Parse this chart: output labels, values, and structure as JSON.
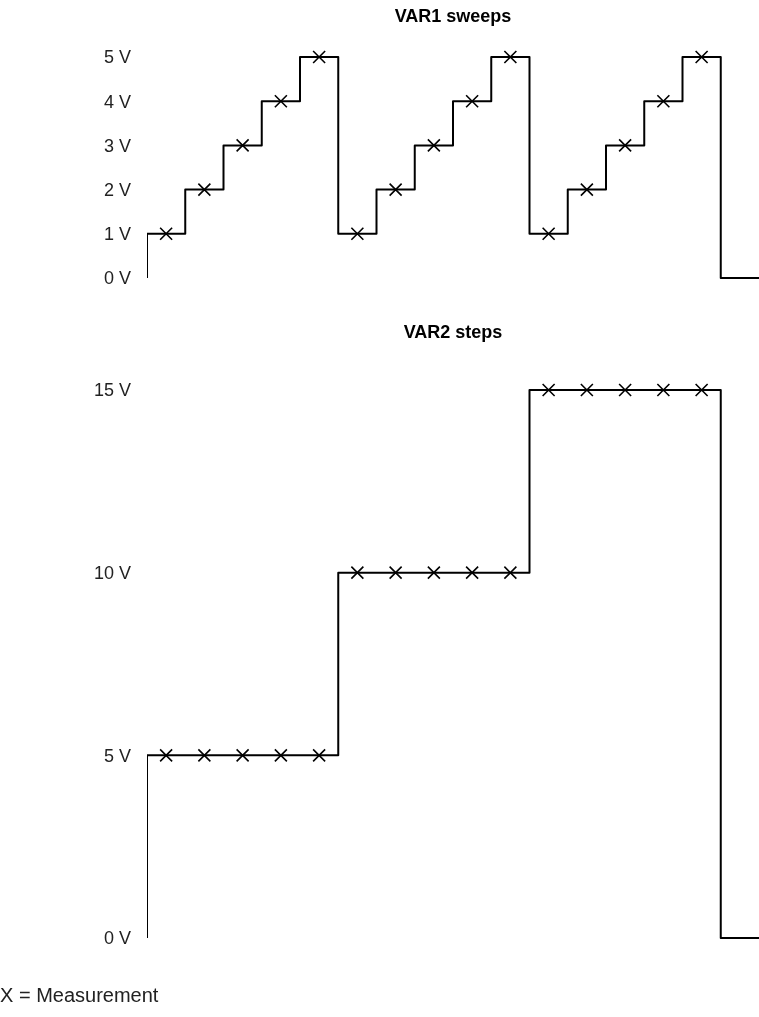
{
  "chart_data": [
    {
      "type": "step",
      "title": "VAR1 sweeps",
      "categories": [
        null,
        null,
        null,
        null,
        null,
        null,
        null,
        null,
        null,
        null,
        null,
        null,
        null,
        null,
        null,
        null,
        null,
        null,
        null,
        null,
        null,
        null,
        null,
        null,
        null,
        null,
        null,
        null,
        null,
        null,
        null,
        null,
        null
      ],
      "ylim": [
        0,
        5
      ],
      "yticks": [
        {
          "value": 0,
          "label": "0 V"
        },
        {
          "value": 1,
          "label": "1 V"
        },
        {
          "value": 2,
          "label": "2 V"
        },
        {
          "value": 3,
          "label": "3 V"
        },
        {
          "value": 4,
          "label": "4 V"
        },
        {
          "value": 5,
          "label": "5 V"
        }
      ],
      "series": [
        {
          "color": "#000000",
          "marker": "none",
          "values": [
            0,
            1,
            1,
            2,
            2,
            3,
            3,
            4,
            4,
            5,
            5,
            1,
            1,
            2,
            2,
            3,
            3,
            4,
            4,
            5,
            5,
            1,
            1,
            2,
            2,
            3,
            3,
            4,
            4,
            5,
            5,
            0,
            0
          ]
        },
        {
          "type": "scatter",
          "color": "#000000",
          "marker": "cross",
          "values": [
            null,
            1,
            null,
            2,
            null,
            3,
            null,
            4,
            null,
            5,
            null,
            1,
            null,
            2,
            null,
            3,
            null,
            4,
            null,
            5,
            null,
            1,
            null,
            2,
            null,
            3,
            null,
            4,
            null,
            5,
            null,
            null,
            null
          ]
        }
      ]
    },
    {
      "type": "step",
      "title": "VAR2 steps",
      "categories": [
        null,
        null,
        null,
        null,
        null,
        null,
        null,
        null,
        null,
        null,
        null,
        null,
        null,
        null,
        null,
        null,
        null,
        null,
        null,
        null,
        null,
        null,
        null,
        null,
        null,
        null,
        null,
        null,
        null,
        null,
        null,
        null,
        null
      ],
      "ylim": [
        0,
        15
      ],
      "yticks": [
        {
          "value": 0,
          "label": "0 V"
        },
        {
          "value": 5,
          "label": "5 V"
        },
        {
          "value": 10,
          "label": "10 V"
        },
        {
          "value": 15,
          "label": "15 V"
        }
      ],
      "annotations": [
        "X = Measurement"
      ],
      "series": [
        {
          "color": "#000000",
          "marker": "none",
          "values": [
            0,
            5,
            5,
            5,
            5,
            5,
            5,
            5,
            5,
            5,
            5,
            10,
            10,
            10,
            10,
            10,
            10,
            10,
            10,
            10,
            10,
            15,
            15,
            15,
            15,
            15,
            15,
            15,
            15,
            15,
            15,
            0,
            0
          ]
        },
        {
          "type": "scatter",
          "color": "#000000",
          "marker": "cross",
          "values": [
            null,
            5,
            null,
            5,
            null,
            5,
            null,
            5,
            null,
            5,
            null,
            10,
            null,
            10,
            null,
            10,
            null,
            10,
            null,
            10,
            null,
            15,
            null,
            15,
            null,
            15,
            null,
            15,
            null,
            15,
            null,
            null,
            null
          ]
        }
      ]
    }
  ]
}
